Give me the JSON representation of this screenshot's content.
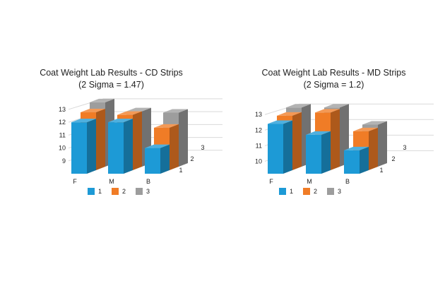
{
  "colors": {
    "series_1": "#1d9ad6",
    "series_2": "#f07c26",
    "series_3": "#9d9d9d"
  },
  "chart_data": [
    {
      "type": "bar",
      "subtype": "3d-clustered",
      "title": "Coat Weight Lab Results - CD Strips",
      "subtitle": "(2 Sigma = 1.47)",
      "categories": [
        "F",
        "M",
        "B"
      ],
      "series": [
        {
          "name": "1",
          "values": [
            12.0,
            12.0,
            10.0
          ]
        },
        {
          "name": "2",
          "values": [
            12.5,
            12.3,
            11.3
          ]
        },
        {
          "name": "3",
          "values": [
            13.0,
            12.3,
            12.2
          ]
        }
      ],
      "depth_labels": [
        "1",
        "2",
        "3"
      ],
      "yticks": [
        "9",
        "10",
        "11",
        "12",
        "13"
      ],
      "ylim": [
        8,
        13.6
      ],
      "grid": true,
      "legend": "bottom"
    },
    {
      "type": "bar",
      "subtype": "3d-clustered",
      "title": "Coat Weight Lab Results - MD Strips",
      "subtitle": "(2 Sigma = 1.2)",
      "categories": [
        "F",
        "M",
        "B"
      ],
      "series": [
        {
          "name": "1",
          "values": [
            12.4,
            11.7,
            10.7
          ]
        },
        {
          "name": "2",
          "values": [
            12.7,
            12.9,
            11.7
          ]
        },
        {
          "name": "3",
          "values": [
            13.0,
            13.0,
            11.9
          ]
        }
      ],
      "depth_labels": [
        "1",
        "2",
        "3"
      ],
      "yticks": [
        "10",
        "11",
        "12",
        "13"
      ],
      "ylim": [
        9.2,
        13.6
      ],
      "grid": true,
      "legend": "bottom"
    }
  ]
}
